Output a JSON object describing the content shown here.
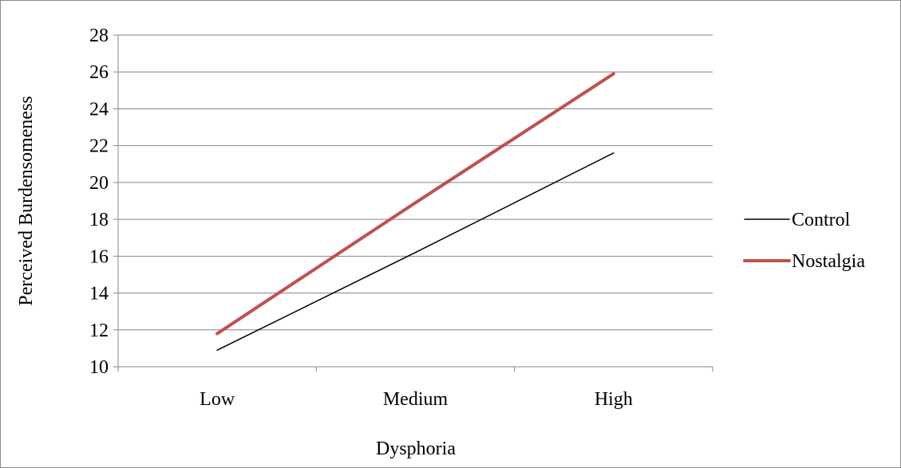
{
  "chart_data": {
    "type": "line",
    "title": "",
    "xlabel": "Dysphoria",
    "ylabel": "Perceived Burdensomeness",
    "categories": [
      "Low",
      "Medium",
      "High"
    ],
    "ylim": [
      10,
      28
    ],
    "yticks": [
      "10",
      "12",
      "14",
      "16",
      "18",
      "20",
      "22",
      "24",
      "26",
      "28"
    ],
    "grid": true,
    "legend_position": "right",
    "series": [
      {
        "name": "Control",
        "values": [
          10.9,
          16.2,
          21.6
        ],
        "color": "#000000"
      },
      {
        "name": "Nostalgia",
        "values": [
          11.8,
          18.9,
          25.9
        ],
        "color": "#c0504d"
      }
    ]
  }
}
